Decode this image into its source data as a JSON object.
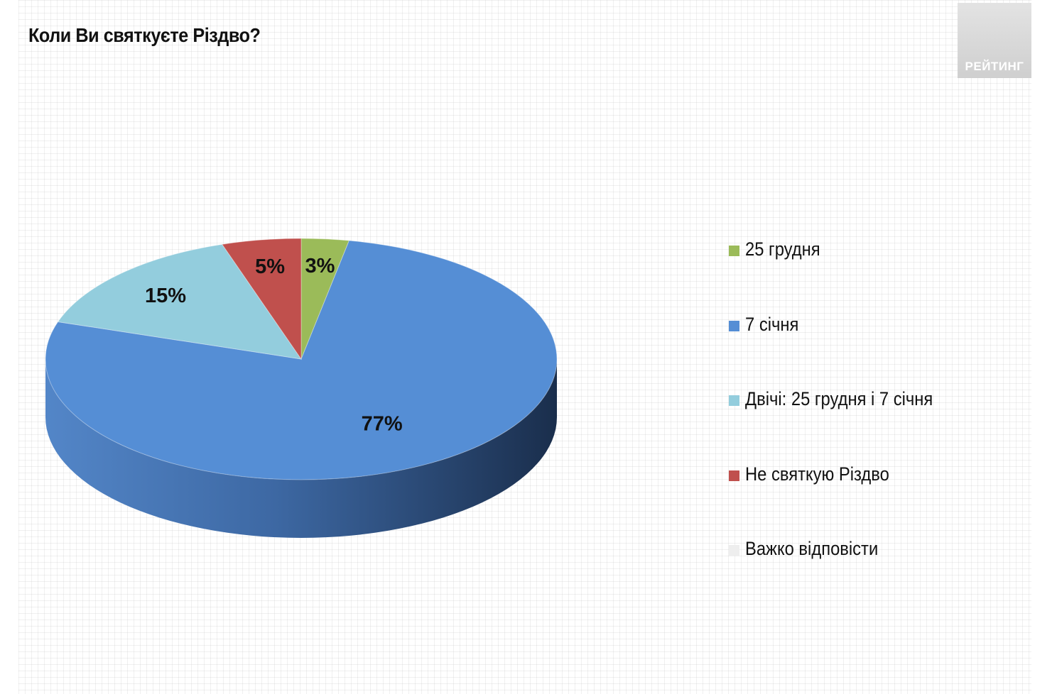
{
  "title": "Коли Ви святкуєте Різдво?",
  "logo": {
    "text": "РЕЙТИНГ"
  },
  "chart_data": {
    "type": "pie",
    "title": "Коли Ви святкуєте Різдво?",
    "categories": [
      "25 грудня",
      "7 січня",
      "Двічі: 25 грудня і 7 січня",
      "Не святкую Різдво",
      "Важко відповісти"
    ],
    "values": [
      3,
      77,
      15,
      5,
      0
    ],
    "data_labels": [
      "3%",
      "77%",
      "15%",
      "5%",
      ""
    ],
    "colors": [
      "#9BBB59",
      "#558ED5",
      "#93CDDD",
      "#C0504D",
      "#EEEEEE"
    ],
    "side_colors": [
      "#6E8A3A",
      "#3C6BA8",
      "#6BA3B3",
      "#8E3532",
      "#CCCCCC"
    ],
    "legend_position": "right",
    "style": "3d"
  }
}
